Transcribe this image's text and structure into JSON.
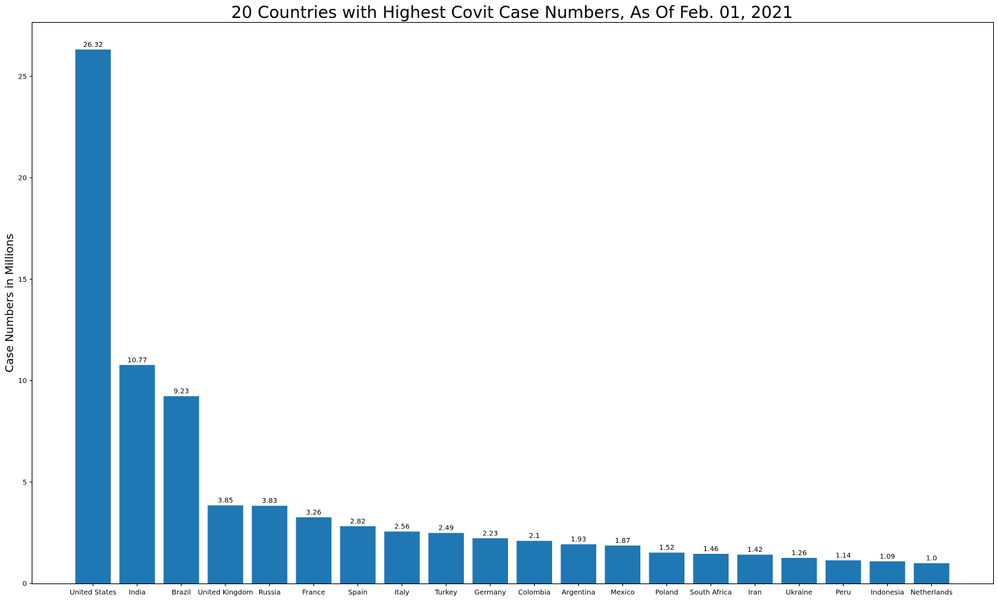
{
  "chart_data": {
    "type": "bar",
    "title": "20 Countries with Highest Covit Case Numbers, As Of Feb. 01, 2021",
    "xlabel": "",
    "ylabel": "Case Numbers in Millions",
    "categories": [
      "United States",
      "India",
      "Brazil",
      "United Kingdom",
      "Russia",
      "France",
      "Spain",
      "Italy",
      "Turkey",
      "Germany",
      "Colombia",
      "Argentina",
      "Mexico",
      "Poland",
      "South Africa",
      "Iran",
      "Ukraine",
      "Peru",
      "Indonesia",
      "Netherlands"
    ],
    "values": [
      26.32,
      10.77,
      9.23,
      3.85,
      3.83,
      3.26,
      2.82,
      2.56,
      2.49,
      2.23,
      2.1,
      1.93,
      1.87,
      1.52,
      1.46,
      1.42,
      1.26,
      1.14,
      1.09,
      1.0
    ],
    "data_labels": [
      "26.32",
      "10.77",
      "9.23",
      "3.85",
      "3.83",
      "3.26",
      "2.82",
      "2.56",
      "2.49",
      "2.23",
      "2.1",
      "1.93",
      "1.87",
      "1.52",
      "1.46",
      "1.42",
      "1.26",
      "1.14",
      "1.09",
      "1.0"
    ],
    "yticks": [
      0,
      5,
      10,
      15,
      20,
      25
    ],
    "ylim": [
      0,
      27.64
    ],
    "grid": false,
    "legend": "none",
    "bar_color": "#1f77b4"
  }
}
